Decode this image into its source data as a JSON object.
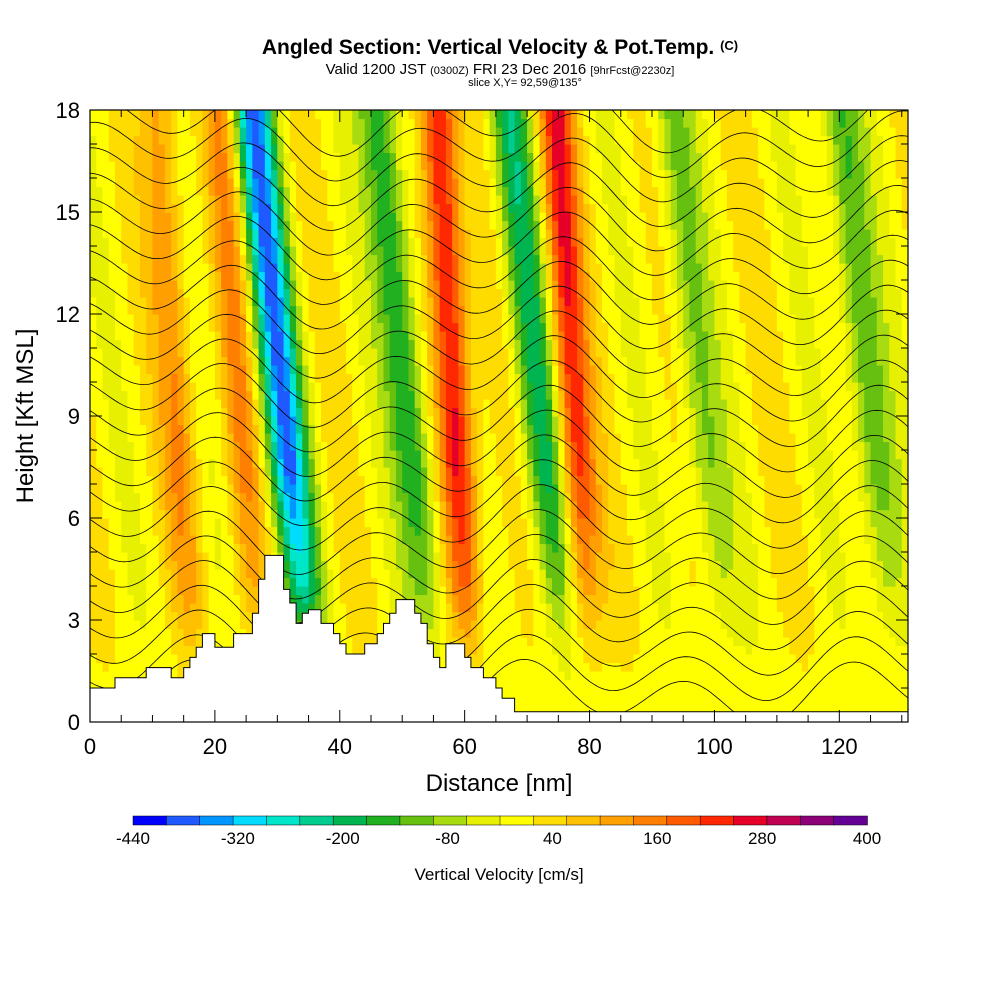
{
  "header": {
    "title": "Angled Section: Vertical Velocity & Pot.Temp.",
    "title_unit": "(C)",
    "valid_prefix": "Valid 1200 JST",
    "valid_utc": "(0300Z)",
    "valid_date": "FRI 23 Dec 2016",
    "forecast": "[9hrFcst@2230z]",
    "slice": "slice X,Y= 92,59@135°"
  },
  "chart_data": {
    "type": "heatmap",
    "xlabel": "Distance [nm]",
    "ylabel": "Height [Kft MSL]",
    "xlim": [
      0,
      131
    ],
    "ylim": [
      0,
      18
    ],
    "x_ticks": [
      0,
      20,
      40,
      60,
      80,
      100,
      120
    ],
    "y_ticks": [
      0,
      3,
      6,
      9,
      12,
      15,
      18
    ],
    "colorbar": {
      "label": "Vertical Velocity [cm/s]",
      "tick_labels": [
        "-440",
        "-320",
        "-200",
        "-80",
        "40",
        "160",
        "280",
        "400"
      ],
      "min": -440,
      "max": 400,
      "step": 40,
      "colors": [
        "#0000ff",
        "#1e5aff",
        "#0096ff",
        "#00dcff",
        "#00e6c8",
        "#00cc90",
        "#00b450",
        "#20b020",
        "#66c010",
        "#a8dc10",
        "#e6f000",
        "#ffff00",
        "#ffdc00",
        "#ffc000",
        "#ffa000",
        "#ff8000",
        "#ff5a00",
        "#ff2800",
        "#e60028",
        "#c00050",
        "#8c0078",
        "#640096"
      ]
    },
    "terrain": [
      [
        0,
        1.0
      ],
      [
        4,
        1.0
      ],
      [
        4,
        1.3
      ],
      [
        9,
        1.3
      ],
      [
        9,
        1.6
      ],
      [
        13,
        1.6
      ],
      [
        13,
        1.3
      ],
      [
        15,
        1.3
      ],
      [
        15,
        1.6
      ],
      [
        16,
        1.6
      ],
      [
        16,
        1.9
      ],
      [
        17,
        1.9
      ],
      [
        17,
        2.2
      ],
      [
        18,
        2.2
      ],
      [
        18,
        2.6
      ],
      [
        20,
        2.6
      ],
      [
        20,
        2.2
      ],
      [
        23,
        2.2
      ],
      [
        23,
        2.6
      ],
      [
        26,
        2.6
      ],
      [
        26,
        3.2
      ],
      [
        27,
        3.2
      ],
      [
        27,
        4.2
      ],
      [
        28,
        4.2
      ],
      [
        28,
        4.9
      ],
      [
        31,
        4.9
      ],
      [
        31,
        3.9
      ],
      [
        32,
        3.9
      ],
      [
        32,
        3.5
      ],
      [
        33,
        3.5
      ],
      [
        33,
        2.9
      ],
      [
        34,
        2.9
      ],
      [
        34,
        3.2
      ],
      [
        35,
        3.2
      ],
      [
        35,
        3.3
      ],
      [
        37,
        3.3
      ],
      [
        37,
        2.9
      ],
      [
        39,
        2.9
      ],
      [
        39,
        2.6
      ],
      [
        40,
        2.6
      ],
      [
        40,
        2.3
      ],
      [
        41,
        2.3
      ],
      [
        41,
        2.0
      ],
      [
        44,
        2.0
      ],
      [
        44,
        2.3
      ],
      [
        46,
        2.3
      ],
      [
        46,
        2.6
      ],
      [
        47,
        2.6
      ],
      [
        47,
        2.9
      ],
      [
        48,
        2.9
      ],
      [
        48,
        3.2
      ],
      [
        49,
        3.2
      ],
      [
        49,
        3.6
      ],
      [
        52,
        3.6
      ],
      [
        52,
        3.2
      ],
      [
        53,
        3.2
      ],
      [
        53,
        2.9
      ],
      [
        54,
        2.9
      ],
      [
        54,
        2.3
      ],
      [
        55,
        2.3
      ],
      [
        55,
        1.9
      ],
      [
        56,
        1.9
      ],
      [
        56,
        1.6
      ],
      [
        57,
        1.6
      ],
      [
        57,
        2.3
      ],
      [
        60,
        2.3
      ],
      [
        60,
        1.9
      ],
      [
        61,
        1.9
      ],
      [
        61,
        1.6
      ],
      [
        63,
        1.6
      ],
      [
        63,
        1.3
      ],
      [
        65,
        1.3
      ],
      [
        65,
        1.0
      ],
      [
        66,
        1.0
      ],
      [
        66,
        0.7
      ],
      [
        68,
        0.7
      ],
      [
        68,
        0.3
      ],
      [
        72,
        0.3
      ],
      [
        72,
        0.3
      ],
      [
        131,
        0.3
      ]
    ],
    "downdraft_bands": [
      {
        "x": 31.0,
        "min_velocity": -380
      },
      {
        "x": 51.0,
        "min_velocity": -200
      },
      {
        "x": 72.0,
        "min_velocity": -200
      },
      {
        "x": 98.0,
        "min_velocity": -120
      },
      {
        "x": 125.0,
        "min_velocity": -160
      }
    ],
    "updraft_bands": [
      {
        "x": 58.5,
        "max_velocity": 280
      },
      {
        "x": 77.5,
        "max_velocity": 240
      },
      {
        "x": 14.0,
        "max_velocity": 120
      },
      {
        "x": 24.0,
        "max_velocity": 120
      }
    ],
    "isentropes_c": [
      "50",
      "48",
      "46",
      "44",
      "42",
      "40",
      "38",
      "36",
      "34",
      "32",
      "30",
      "28",
      "26",
      "24",
      "22",
      "20",
      "18",
      "16",
      "14",
      "12",
      "10",
      "8",
      "6",
      "4"
    ]
  }
}
